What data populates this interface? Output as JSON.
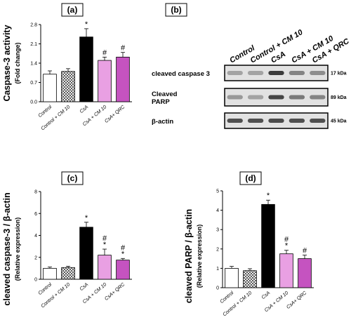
{
  "colors": {
    "control": "#ffffff",
    "control_cm10": "#ffffff",
    "csa": "#000000",
    "csa_cm10": "#e9a0e3",
    "csa_qrc": "#c553c0"
  },
  "chart_data": [
    {
      "type": "bar",
      "panel": "(a)",
      "title": "",
      "ylabel": "Caspase-3 activity",
      "ylabel_sub": "(Fold change)",
      "xlabel": "",
      "categories": [
        "Control",
        "Control + CM 10",
        "CsA",
        "CsA + CM 10",
        "CsA+ QRC"
      ],
      "values": [
        1.0,
        1.1,
        2.35,
        1.5,
        1.62
      ],
      "errors": [
        0.12,
        0.1,
        0.3,
        0.12,
        0.17
      ],
      "annotations": [
        "",
        "",
        "*",
        "#",
        "#"
      ],
      "ylim": [
        0,
        2.8
      ],
      "yticks": [
        "0.0",
        "0.7",
        "1.4",
        "2.1",
        "2.8"
      ],
      "grid": false
    },
    {
      "type": "bar",
      "panel": "(c)",
      "title": "",
      "ylabel": "cleaved caspase-3 / β-actin",
      "ylabel_sub": "(Relative expression)",
      "xlabel": "",
      "categories": [
        "Control",
        "Control + CM 10",
        "CsA",
        "CsA + CM 10",
        "CsA+ QRC"
      ],
      "values": [
        1.0,
        1.07,
        4.75,
        2.2,
        1.75
      ],
      "errors": [
        0.12,
        0.12,
        0.45,
        0.55,
        0.15
      ],
      "annotations": [
        "",
        "",
        "*",
        "#\n*",
        "#\n*"
      ],
      "ylim": [
        0,
        8
      ],
      "yticks": [
        "0",
        "2",
        "4",
        "6",
        "8"
      ],
      "grid": false
    },
    {
      "type": "bar",
      "panel": "(d)",
      "title": "",
      "ylabel": "cleaved PARP / β-actin",
      "ylabel_sub": "(Relative expression)",
      "xlabel": "",
      "categories": [
        "Control",
        "Control + CM 10",
        "CsA",
        "CsA + CM 10",
        "CsA+ QRC"
      ],
      "values": [
        1.0,
        0.88,
        4.3,
        1.75,
        1.5
      ],
      "errors": [
        0.1,
        0.1,
        0.22,
        0.18,
        0.18
      ],
      "annotations": [
        "",
        "",
        "*",
        "#\n*",
        "#"
      ],
      "ylim": [
        0,
        5
      ],
      "yticks": [
        "0",
        "1",
        "2",
        "3",
        "4",
        "5"
      ],
      "grid": false
    }
  ],
  "western_blot": {
    "panel": "(b)",
    "lanes": [
      "Control",
      "Control + CM 10",
      "CsA",
      "CsA + CM 10",
      "CsA + QRC"
    ],
    "rows": [
      {
        "label": "cleaved caspase 3",
        "kda": "17 kDa",
        "intensity": [
          0.3,
          0.3,
          0.8,
          0.45,
          0.4
        ]
      },
      {
        "label": "Cleaved\nPARP",
        "kda": "89 kDa",
        "intensity": [
          0.35,
          0.3,
          0.75,
          0.5,
          0.45
        ]
      },
      {
        "label": "β-actin",
        "kda": "45 kDa",
        "intensity": [
          0.7,
          0.7,
          0.72,
          0.7,
          0.7
        ]
      }
    ]
  }
}
